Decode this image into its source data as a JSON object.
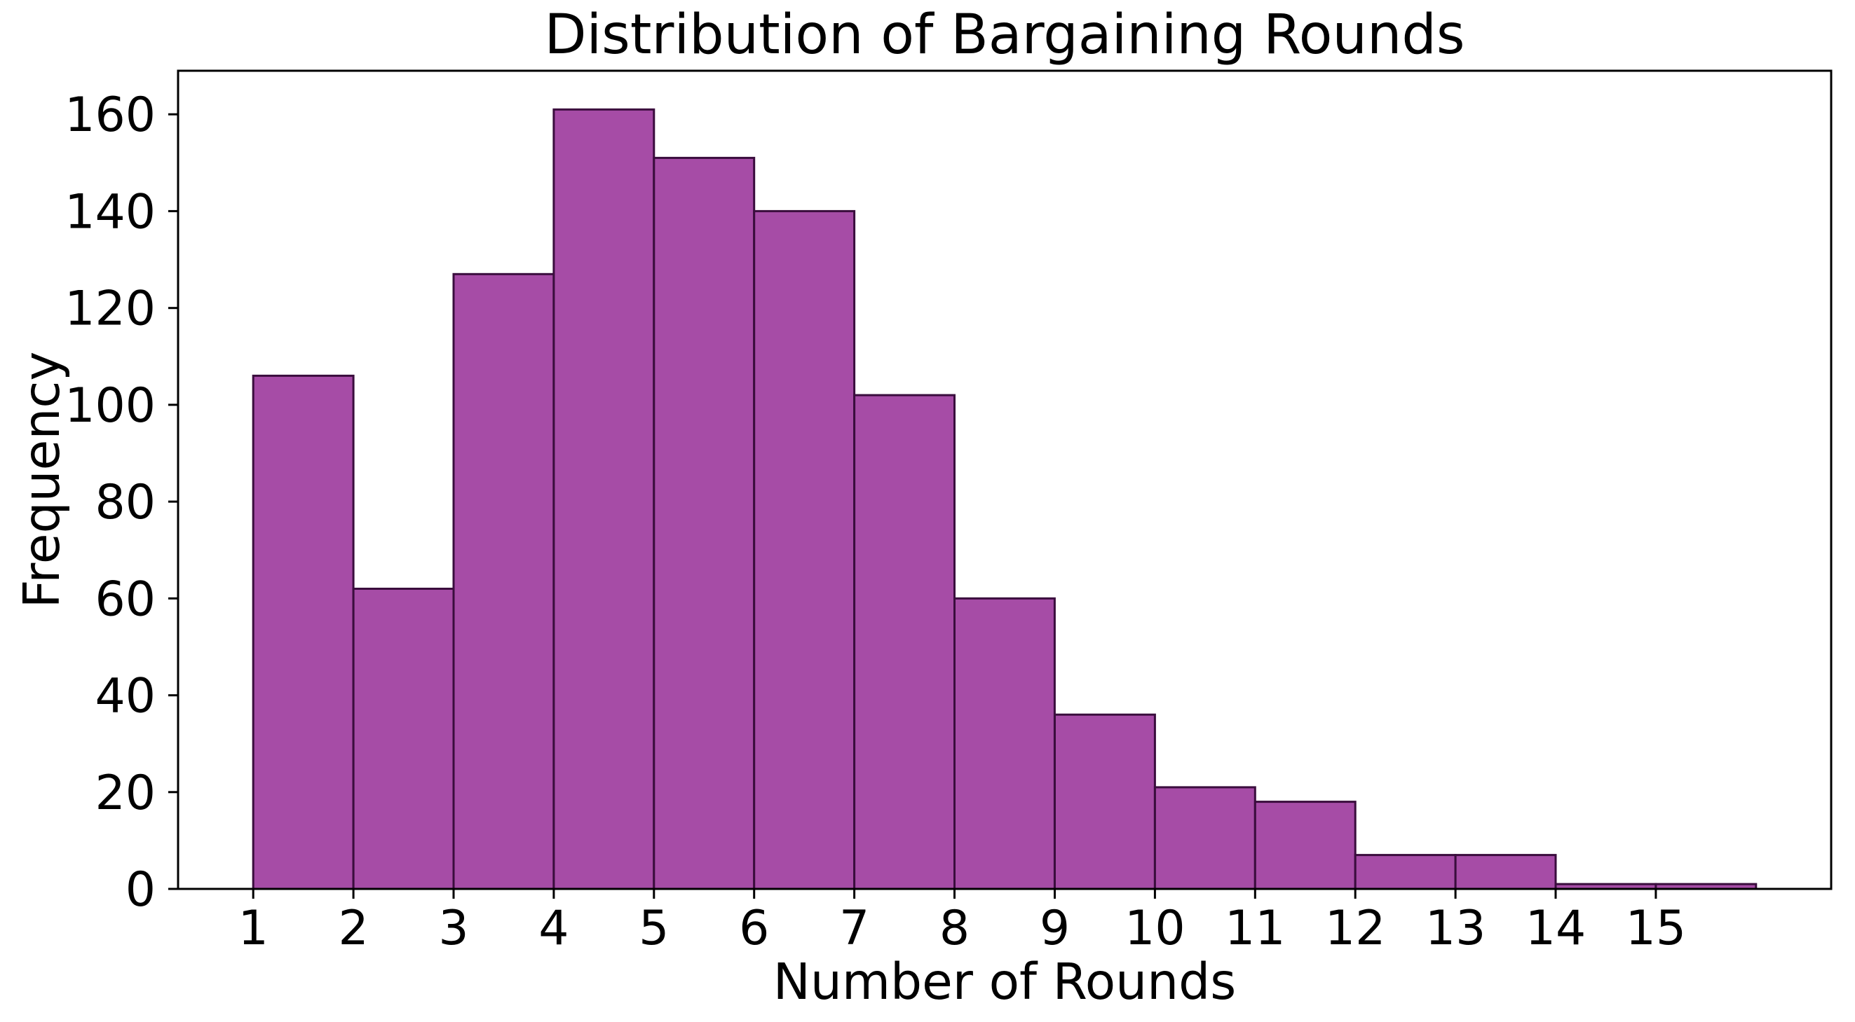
{
  "figure": {
    "title": "Distribution of Bargaining Rounds",
    "xlabel": "Number of Rounds",
    "ylabel": "Frequency"
  },
  "chart_data": {
    "type": "bar",
    "subtype": "histogram",
    "title": "Distribution of Bargaining Rounds",
    "xlabel": "Number of Rounds",
    "ylabel": "Frequency",
    "bin_edges": [
      1,
      2,
      3,
      4,
      5,
      6,
      7,
      8,
      9,
      10,
      11,
      12,
      13,
      14,
      15,
      16
    ],
    "values": [
      106,
      62,
      127,
      161,
      151,
      140,
      102,
      60,
      36,
      21,
      18,
      7,
      7,
      1,
      1
    ],
    "xticks": [
      1,
      2,
      3,
      4,
      5,
      6,
      7,
      8,
      9,
      10,
      11,
      12,
      13,
      14,
      15
    ],
    "yticks": [
      0,
      20,
      40,
      60,
      80,
      100,
      120,
      140,
      160
    ],
    "xlim": [
      0.25,
      16.75
    ],
    "ylim": [
      0,
      169
    ],
    "grid": false,
    "legend": null,
    "colors": {
      "bar_fill": "#a64ca6",
      "bar_edge": "#3a0d3d",
      "axis": "#000000",
      "text": "#000000",
      "background": "#ffffff"
    }
  }
}
